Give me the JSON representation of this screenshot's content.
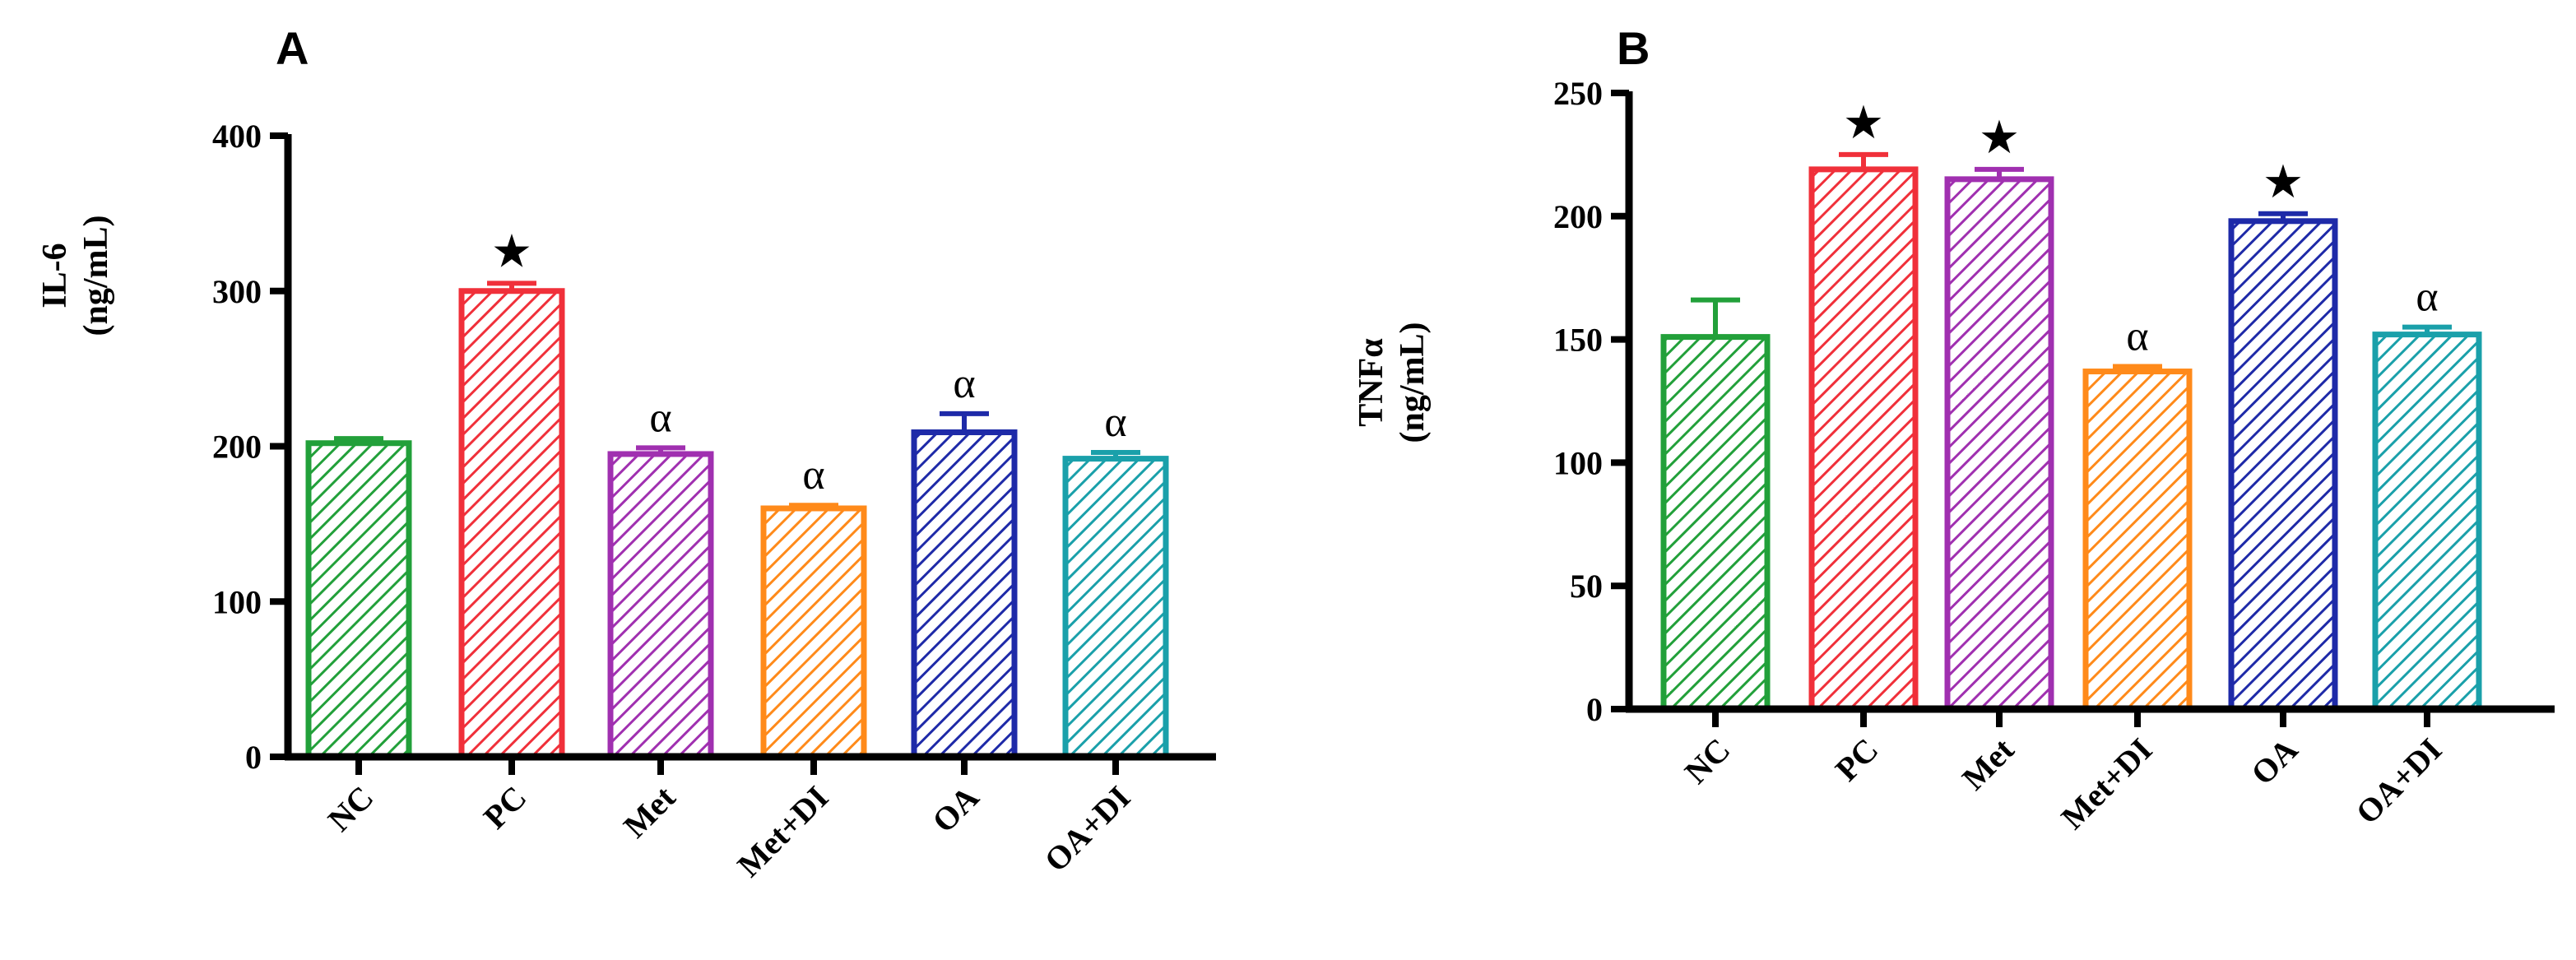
{
  "chart_data": [
    {
      "panel": "A",
      "type": "bar",
      "ylabel_line1": "IL-6",
      "ylabel_line2": "(ng/mL)",
      "ylim": [
        0,
        400
      ],
      "yticks": [
        0,
        100,
        200,
        300,
        400
      ],
      "categories": [
        "NC",
        "PC",
        "Met",
        "Met+DI",
        "OA",
        "OA+DI"
      ],
      "values": [
        202,
        300,
        195,
        160,
        209,
        192
      ],
      "errors": [
        3,
        5,
        4,
        2,
        12,
        4
      ],
      "colors": [
        "#22a03a",
        "#f0303a",
        "#a030b0",
        "#ff8a1a",
        "#1e2aa8",
        "#1aa0aa"
      ],
      "markers": [
        "",
        "★",
        "α",
        "α",
        "α",
        "α"
      ]
    },
    {
      "panel": "B",
      "type": "bar",
      "ylabel_line1": "TNFα",
      "ylabel_line2": "(ng/mL)",
      "ylim": [
        0,
        250
      ],
      "yticks": [
        0,
        50,
        100,
        150,
        200,
        250
      ],
      "categories": [
        "NC",
        "PC",
        "Met",
        "Met+DI",
        "OA",
        "OA+DI"
      ],
      "values": [
        151,
        219,
        215,
        137,
        198,
        152
      ],
      "errors": [
        15,
        6,
        4,
        2,
        3,
        3
      ],
      "colors": [
        "#22a03a",
        "#f0303a",
        "#a030b0",
        "#ff8a1a",
        "#1e2aa8",
        "#1aa0aa"
      ],
      "markers": [
        "",
        "★",
        "★",
        "α",
        "★",
        "α"
      ]
    }
  ]
}
